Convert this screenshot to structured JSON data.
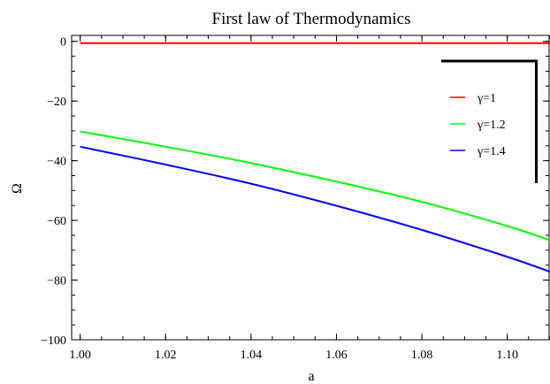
{
  "chart_data": {
    "type": "line",
    "title": "First law of Thermodynamics",
    "xlabel": "a",
    "ylabel": "Ω",
    "xlim": [
      0.998,
      1.11
    ],
    "ylim": [
      -100,
      2
    ],
    "grid": false,
    "legend_position": "top-right",
    "x_ticks": [
      "1.00",
      "1.02",
      "1.04",
      "1.06",
      "1.08",
      "1.10"
    ],
    "x_tick_values": [
      1.0,
      1.02,
      1.04,
      1.06,
      1.08,
      1.1
    ],
    "y_ticks": [
      "0",
      "−20",
      "−40",
      "−60",
      "−80",
      "−100"
    ],
    "y_tick_values": [
      0,
      -20,
      -40,
      -60,
      -80,
      -100
    ],
    "x": [
      1.0,
      1.02,
      1.04,
      1.06,
      1.08,
      1.1,
      1.11
    ],
    "series": [
      {
        "name": "γ=1",
        "color": "#ff0000",
        "values": [
          -0.6,
          -0.6,
          -0.6,
          -0.6,
          -0.6,
          -0.6,
          -0.6
        ]
      },
      {
        "name": "γ=1.2",
        "color": "#00ff00",
        "values": [
          -30.2,
          -35.3,
          -40.8,
          -47.0,
          -53.8,
          -61.9,
          -66.7
        ]
      },
      {
        "name": "γ=1.4",
        "color": "#0000ff",
        "values": [
          -35.3,
          -41.3,
          -47.7,
          -55.1,
          -63.2,
          -72.2,
          -77.2
        ]
      }
    ]
  }
}
